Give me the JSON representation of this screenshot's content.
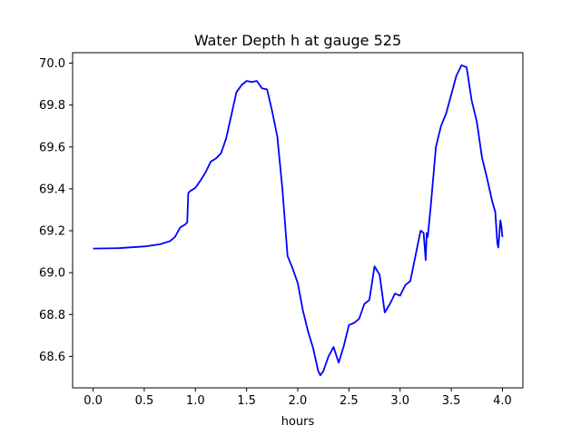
{
  "chart_data": {
    "type": "line",
    "title": "Water Depth h at gauge 525",
    "xlabel": "hours",
    "ylabel": "",
    "xlim": [
      -0.2,
      4.2
    ],
    "ylim": [
      68.45,
      70.05
    ],
    "xticks": [
      0.0,
      0.5,
      1.0,
      1.5,
      2.0,
      2.5,
      3.0,
      3.5,
      4.0
    ],
    "xtick_labels": [
      "0.0",
      "0.5",
      "1.0",
      "1.5",
      "2.0",
      "2.5",
      "3.0",
      "3.5",
      "4.0"
    ],
    "yticks": [
      68.6,
      68.8,
      69.0,
      69.2,
      69.4,
      69.6,
      69.8,
      70.0
    ],
    "ytick_labels": [
      "68.6",
      "68.8",
      "69.0",
      "69.2",
      "69.4",
      "69.6",
      "69.8",
      "70.0"
    ],
    "grid": false,
    "legend": "none",
    "series": [
      {
        "color": "#0000ff",
        "x": [
          0.0,
          0.25,
          0.5,
          0.65,
          0.75,
          0.8,
          0.85,
          0.9,
          0.92,
          0.93,
          0.95,
          1.0,
          1.05,
          1.1,
          1.15,
          1.2,
          1.25,
          1.3,
          1.35,
          1.4,
          1.45,
          1.5,
          1.55,
          1.6,
          1.65,
          1.7,
          1.75,
          1.8,
          1.85,
          1.9,
          1.95,
          2.0,
          2.05,
          2.1,
          2.15,
          2.2,
          2.22,
          2.25,
          2.3,
          2.35,
          2.4,
          2.45,
          2.5,
          2.55,
          2.6,
          2.65,
          2.7,
          2.75,
          2.8,
          2.85,
          2.9,
          2.95,
          3.0,
          3.05,
          3.1,
          3.15,
          3.2,
          3.23,
          3.25,
          3.26,
          3.27,
          3.3,
          3.35,
          3.4,
          3.45,
          3.5,
          3.55,
          3.6,
          3.65,
          3.7,
          3.75,
          3.8,
          3.85,
          3.9,
          3.93,
          3.95,
          3.96,
          3.98,
          3.99,
          4.0
        ],
        "y": [
          69.115,
          69.117,
          69.125,
          69.135,
          69.15,
          69.17,
          69.215,
          69.23,
          69.24,
          69.38,
          69.39,
          69.405,
          69.44,
          69.48,
          69.53,
          69.545,
          69.57,
          69.64,
          69.75,
          69.86,
          69.895,
          69.915,
          69.91,
          69.915,
          69.88,
          69.875,
          69.77,
          69.65,
          69.4,
          69.08,
          69.02,
          68.95,
          68.82,
          68.72,
          68.64,
          68.53,
          68.51,
          68.53,
          68.6,
          68.645,
          68.57,
          68.65,
          68.75,
          68.76,
          68.78,
          68.85,
          68.87,
          69.03,
          68.99,
          68.81,
          68.85,
          68.9,
          68.89,
          68.94,
          68.96,
          69.08,
          69.2,
          69.19,
          69.06,
          69.19,
          69.17,
          69.32,
          69.6,
          69.7,
          69.76,
          69.85,
          69.94,
          69.99,
          69.98,
          69.82,
          69.72,
          69.55,
          69.45,
          69.34,
          69.29,
          69.14,
          69.12,
          69.25,
          69.22,
          69.17
        ]
      }
    ]
  }
}
